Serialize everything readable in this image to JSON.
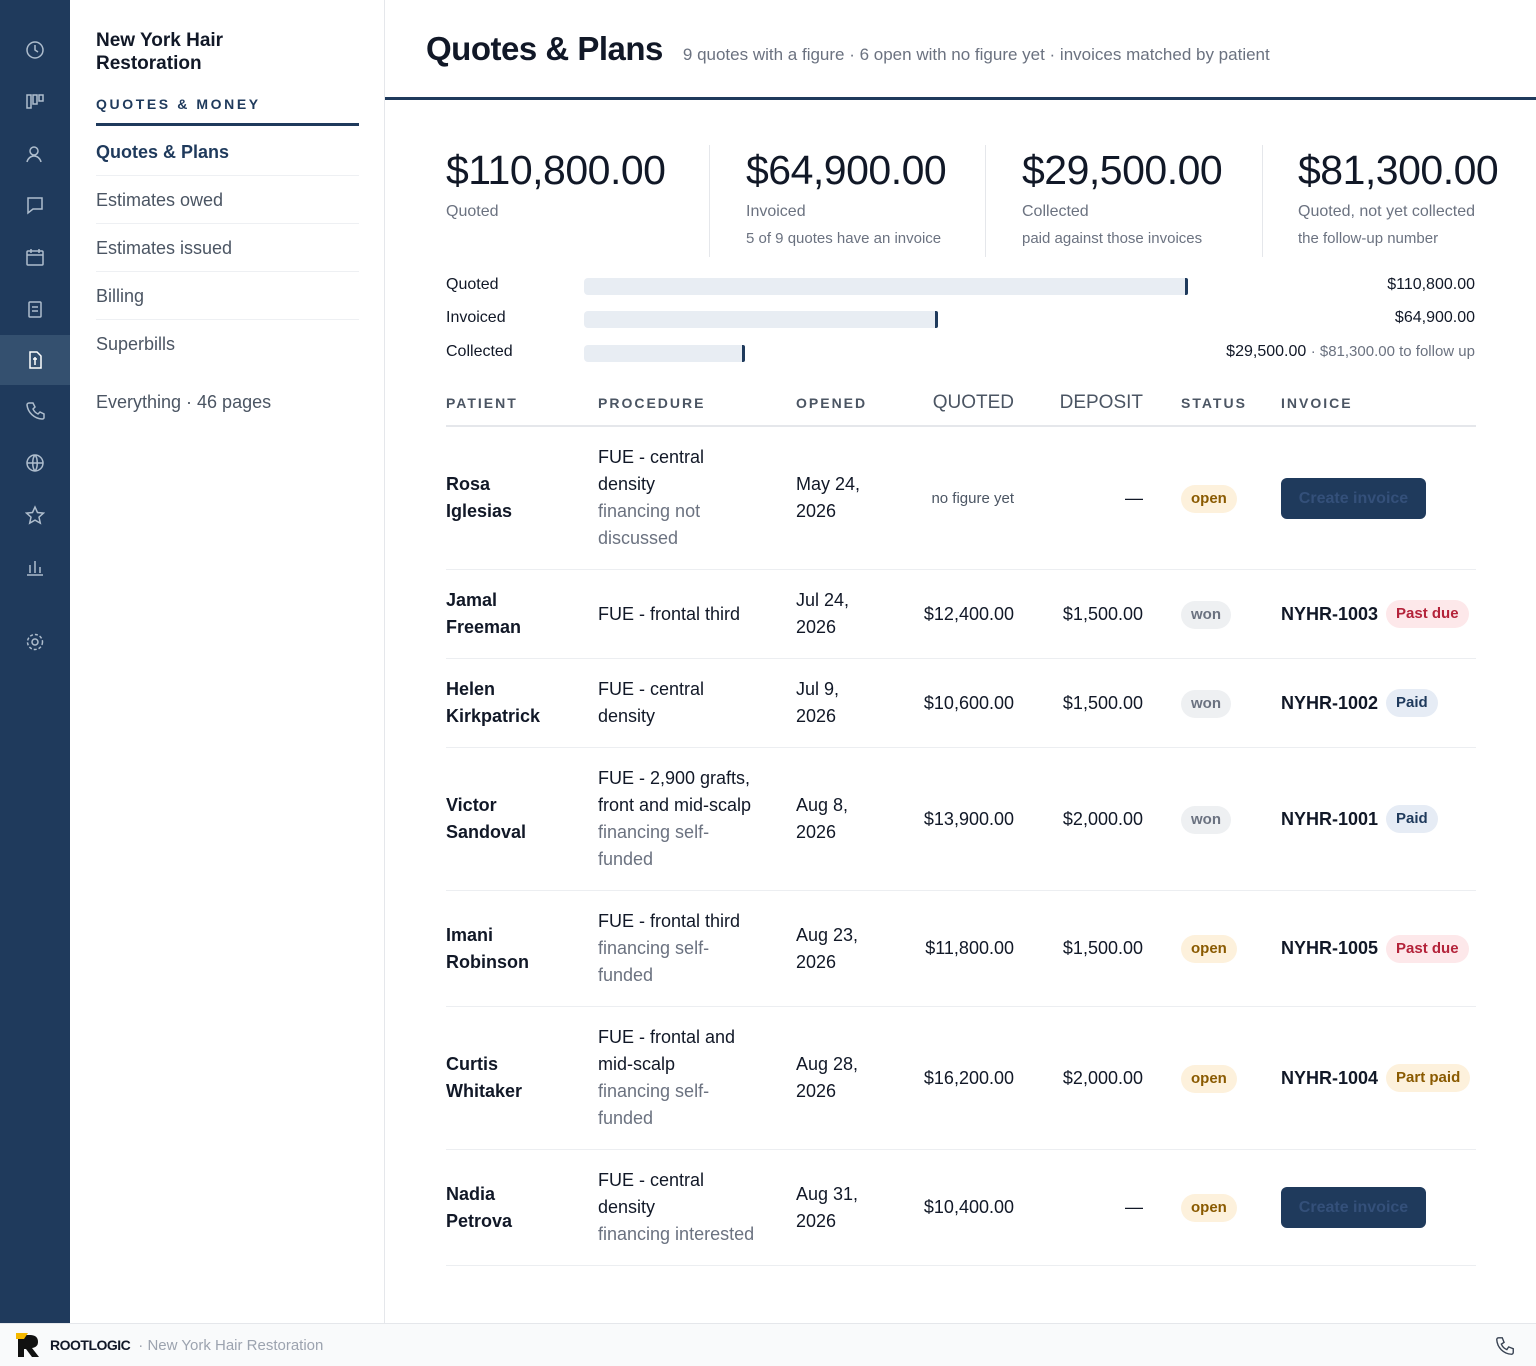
{
  "sidebar": {
    "brand": "New York Hair Restoration",
    "section": "QUOTES & MONEY",
    "nav": [
      "Quotes & Plans",
      "Estimates owed",
      "Estimates issued",
      "Billing",
      "Superbills"
    ],
    "everything": "Everything · 46 pages"
  },
  "header": {
    "title": "Quotes & Plans",
    "subtitle": "9 quotes with a figure · 6 open with no figure yet · invoices matched by patient"
  },
  "kpis": [
    {
      "value": "$110,800.00",
      "label": "Quoted"
    },
    {
      "value": "$64,900.00",
      "label": "Invoiced",
      "note": "5 of 9 quotes have an invoice"
    },
    {
      "value": "$29,500.00",
      "label": "Collected",
      "note": "paid against those invoices"
    },
    {
      "value": "$81,300.00",
      "label": "Quoted, not yet collected",
      "note": "the follow-up number"
    }
  ],
  "progress": [
    {
      "label": "Quoted",
      "amount": 110800,
      "amount_label": "$110,800.00"
    },
    {
      "label": "Invoiced",
      "amount": 64900,
      "amount_label": "$64,900.00"
    },
    {
      "label": "Collected",
      "amount": 29500,
      "amount_label": "$29,500.00",
      "extra": "· $81,300.00 to follow up"
    }
  ],
  "table": {
    "columns": [
      "PATIENT",
      "PROCEDURE",
      "OPENED",
      "QUOTED",
      "DEPOSIT",
      "STATUS",
      "INVOICE"
    ],
    "rows": [
      {
        "patient": "Rosa Iglesias",
        "procedure": "FUE - central density",
        "note": "financing not discussed",
        "opened": "May 24, 2026",
        "quoted": "no figure yet",
        "deposit": "—",
        "status": "open",
        "action": "Create invoice"
      },
      {
        "patient": "Jamal Freeman",
        "procedure": "FUE - frontal third",
        "opened": "Jul 24, 2026",
        "quoted": "$12,400.00",
        "deposit": "$1,500.00",
        "status": "won",
        "invoice_number": "NYHR-1003",
        "invoice_status": "Past due"
      },
      {
        "patient": "Helen Kirkpatrick",
        "procedure": "FUE - central density",
        "opened": "Jul 9, 2026",
        "quoted": "$10,600.00",
        "deposit": "$1,500.00",
        "status": "won",
        "invoice_number": "NYHR-1002",
        "invoice_status": "Paid"
      },
      {
        "patient": "Victor Sandoval",
        "procedure": "FUE - 2,900 grafts, front and mid-scalp",
        "note": "financing self-funded",
        "opened": "Aug 8, 2026",
        "quoted": "$13,900.00",
        "deposit": "$2,000.00",
        "status": "won",
        "invoice_number": "NYHR-1001",
        "invoice_status": "Paid"
      },
      {
        "patient": "Imani Robinson",
        "procedure": "FUE - frontal third",
        "note": "financing self-funded",
        "opened": "Aug 23, 2026",
        "quoted": "$11,800.00",
        "deposit": "$1,500.00",
        "status": "open",
        "invoice_number": "NYHR-1005",
        "invoice_status": "Past due"
      },
      {
        "patient": "Curtis Whitaker",
        "procedure": "FUE - frontal and mid-scalp",
        "note": "financing self-funded",
        "opened": "Aug 28, 2026",
        "quoted": "$16,200.00",
        "deposit": "$2,000.00",
        "status": "open",
        "invoice_number": "NYHR-1004",
        "invoice_status": "Part paid"
      },
      {
        "patient": "Nadia Petrova",
        "procedure": "FUE - central density",
        "note": "financing interested",
        "opened": "Aug 31, 2026",
        "quoted": "$10,400.00",
        "deposit": "—",
        "status": "open",
        "action": "Create invoice"
      }
    ]
  },
  "footer": {
    "brand": "ROOTLOGIC",
    "org": "· New York Hair Restoration"
  }
}
